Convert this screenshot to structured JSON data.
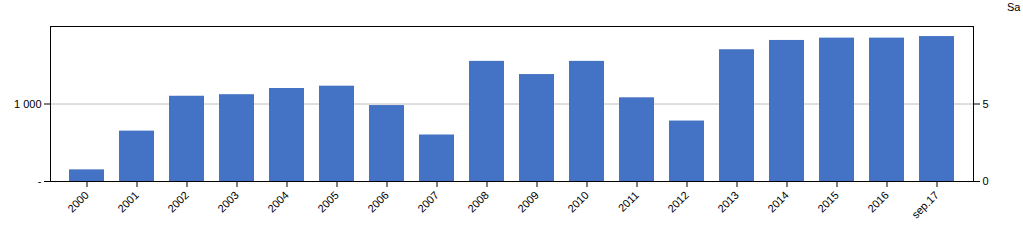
{
  "chart_data": {
    "type": "bar",
    "categories": [
      "2000",
      "2001",
      "2002",
      "2003",
      "2004",
      "2005",
      "2006",
      "2007",
      "2008",
      "2009",
      "2010",
      "2011",
      "2012",
      "2013",
      "2014",
      "2015",
      "2016",
      "sep.17"
    ],
    "values": [
      150,
      650,
      1100,
      1120,
      1200,
      1230,
      980,
      600,
      1550,
      1380,
      1550,
      1080,
      780,
      1700,
      1820,
      1850,
      1850,
      1870
    ],
    "color": "#4472C4",
    "ylim": [
      0,
      2000
    ],
    "yticks": [
      {
        "value": 0,
        "label": "-"
      },
      {
        "value": 1000,
        "label": "1 000"
      }
    ],
    "y2lim": [
      0,
      10
    ],
    "y2ticks": [
      0,
      5
    ],
    "y2label": "Sa",
    "grid": true
  }
}
